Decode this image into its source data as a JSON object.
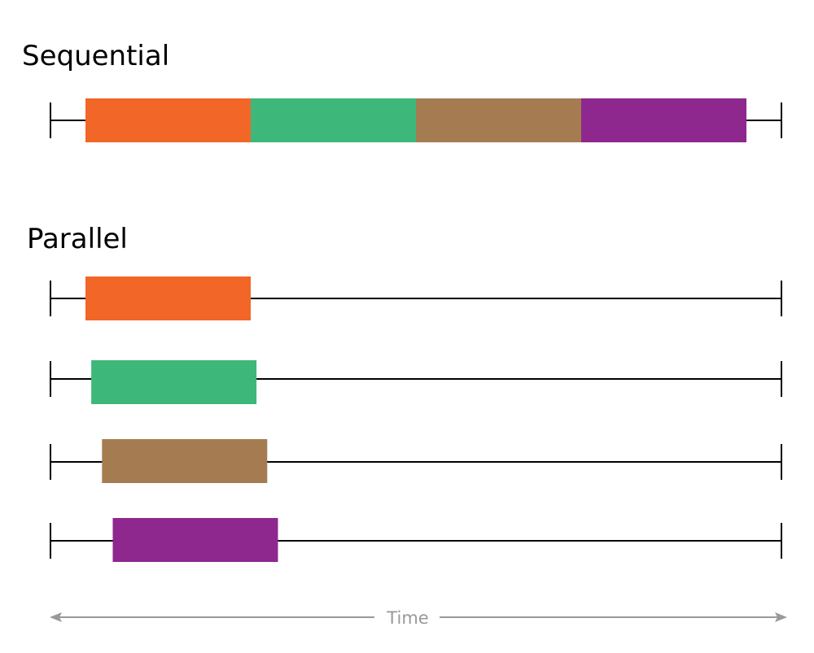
{
  "sequential": {
    "title": "Sequential",
    "tasks": [
      {
        "start": 0,
        "end": 1,
        "color": "#f26627"
      },
      {
        "start": 1,
        "end": 2,
        "color": "#3db87a"
      },
      {
        "start": 2,
        "end": 3,
        "color": "#a57c52"
      },
      {
        "start": 3,
        "end": 4,
        "color": "#8e278e"
      }
    ]
  },
  "parallel": {
    "title": "Parallel",
    "tasks": [
      {
        "start": 0.0,
        "end": 1.0,
        "color": "#f26627"
      },
      {
        "start": 0.035,
        "end": 1.035,
        "color": "#3db87a"
      },
      {
        "start": 0.1,
        "end": 1.1,
        "color": "#a57c52"
      },
      {
        "start": 0.165,
        "end": 1.165,
        "color": "#8e278e"
      }
    ]
  },
  "time_axis": {
    "label": "Time",
    "color": "#999999"
  }
}
